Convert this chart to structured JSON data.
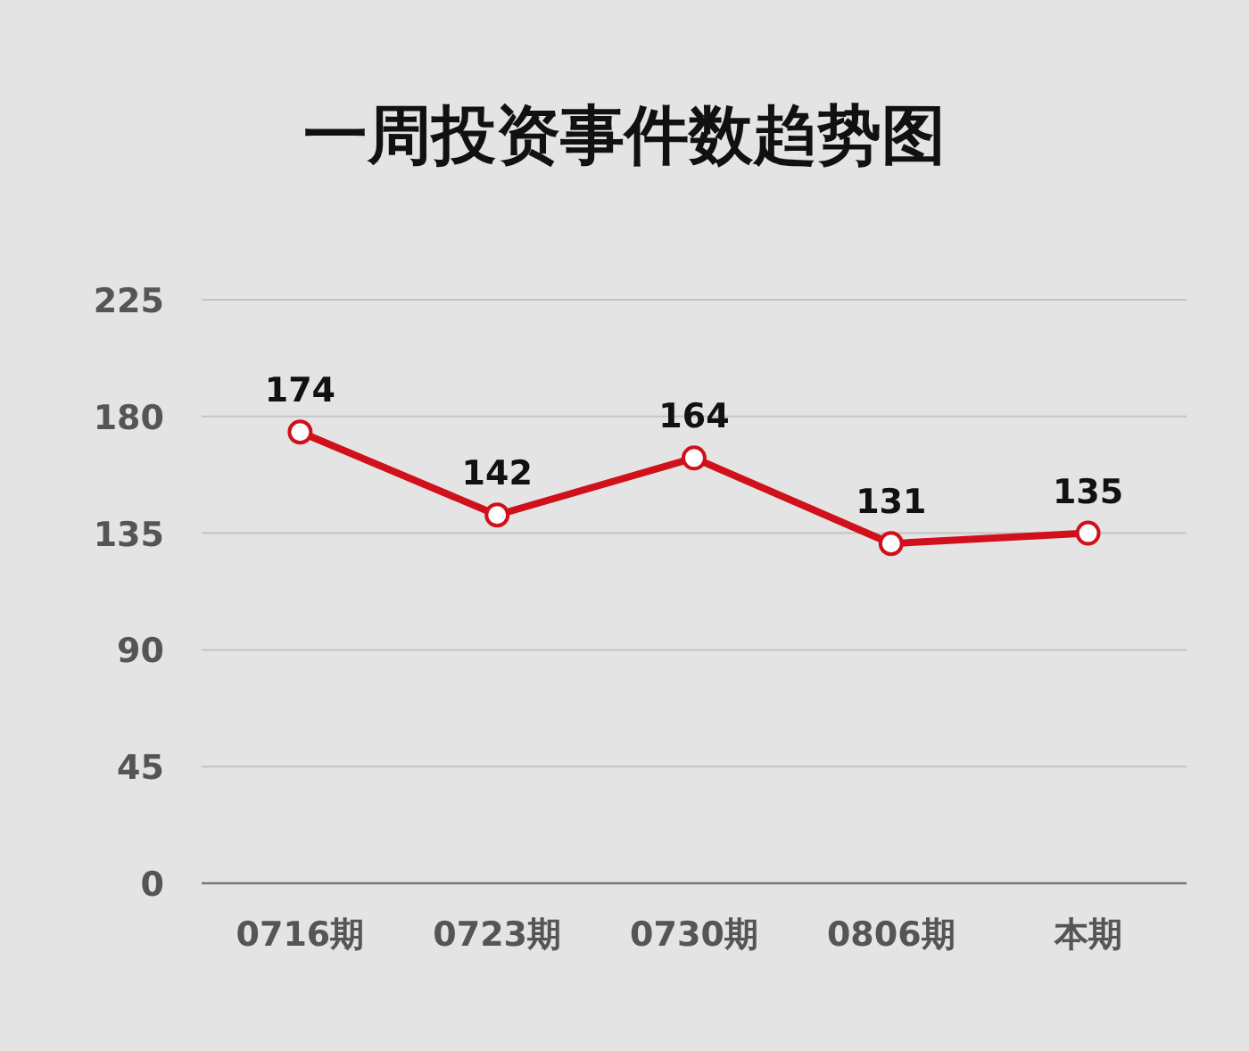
{
  "chart_data": {
    "type": "line",
    "title": "一周投资事件数趋势图",
    "categories": [
      "0716期",
      "0723期",
      "0730期",
      "0806期",
      "本期"
    ],
    "series": [
      {
        "color": "#d0101b",
        "values": [
          174,
          142,
          164,
          131,
          135
        ]
      }
    ],
    "ylim": [
      0,
      225
    ],
    "yticks": [
      0,
      45,
      90,
      135,
      180,
      225
    ],
    "grid": "y",
    "data_labels": true,
    "marker": "circle",
    "line_style": "solid"
  }
}
